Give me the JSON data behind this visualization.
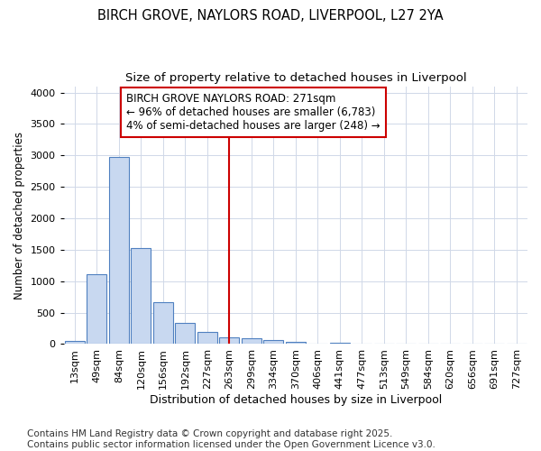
{
  "title": "BIRCH GROVE, NAYLORS ROAD, LIVERPOOL, L27 2YA",
  "subtitle": "Size of property relative to detached houses in Liverpool",
  "xlabel": "Distribution of detached houses by size in Liverpool",
  "ylabel": "Number of detached properties",
  "categories": [
    "13sqm",
    "49sqm",
    "84sqm",
    "120sqm",
    "156sqm",
    "192sqm",
    "227sqm",
    "263sqm",
    "299sqm",
    "334sqm",
    "370sqm",
    "406sqm",
    "441sqm",
    "477sqm",
    "513sqm",
    "549sqm",
    "584sqm",
    "620sqm",
    "656sqm",
    "691sqm",
    "727sqm"
  ],
  "values": [
    50,
    1110,
    2975,
    1530,
    660,
    340,
    200,
    105,
    95,
    65,
    30,
    10,
    20,
    0,
    0,
    0,
    0,
    0,
    0,
    0,
    0
  ],
  "bar_color": "#c8d8f0",
  "bar_edge_color": "#5080c0",
  "vline_index": 7,
  "vline_color": "#cc0000",
  "annotation_text": "BIRCH GROVE NAYLORS ROAD: 271sqm\n← 96% of detached houses are smaller (6,783)\n4% of semi-detached houses are larger (248) →",
  "annotation_box_facecolor": "#ffffff",
  "annotation_box_edgecolor": "#cc0000",
  "ylim": [
    0,
    4100
  ],
  "yticks": [
    0,
    500,
    1000,
    1500,
    2000,
    2500,
    3000,
    3500,
    4000
  ],
  "bg_color": "#ffffff",
  "grid_color": "#d0d8e8",
  "footer_text": "Contains HM Land Registry data © Crown copyright and database right 2025.\nContains public sector information licensed under the Open Government Licence v3.0.",
  "title_fontsize": 10.5,
  "subtitle_fontsize": 9.5,
  "xlabel_fontsize": 9,
  "ylabel_fontsize": 8.5,
  "tick_fontsize": 8,
  "annotation_fontsize": 8.5,
  "footer_fontsize": 7.5
}
